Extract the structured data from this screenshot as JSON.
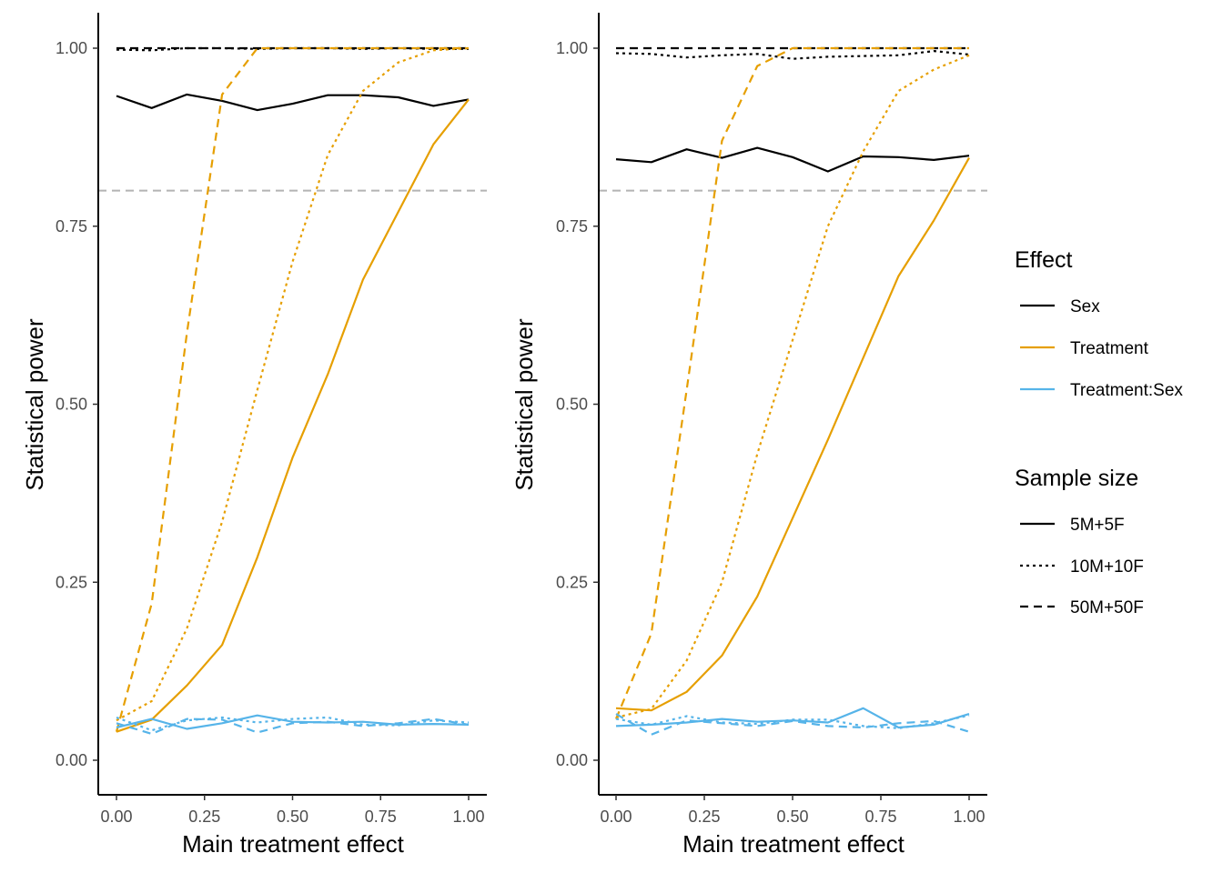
{
  "chart_data": [
    {
      "type": "line",
      "xlabel": "Main treatment effect",
      "ylabel": "Statistical power",
      "xlim": [
        -0.05,
        1.05
      ],
      "ylim": [
        -0.05,
        1.05
      ],
      "x_ticks": [
        "0.00",
        "0.25",
        "0.50",
        "0.75",
        "1.00"
      ],
      "y_ticks": [
        "0.00",
        "0.25",
        "0.50",
        "0.75",
        "1.00"
      ],
      "grid": false,
      "reference_line_y": 0.8,
      "x": [
        0.0,
        0.1,
        0.2,
        0.3,
        0.4,
        0.5,
        0.6,
        0.7,
        0.8,
        0.9,
        1.0
      ],
      "series": [
        {
          "effect": "Sex",
          "sample_size": "5M+5F",
          "values": [
            0.933,
            0.916,
            0.935,
            0.926,
            0.913,
            0.922,
            0.934,
            0.934,
            0.931,
            0.919,
            0.928
          ]
        },
        {
          "effect": "Sex",
          "sample_size": "10M+10F",
          "values": [
            0.998,
            0.997,
            1.0,
            1.0,
            0.999,
            1.0,
            1.0,
            0.999,
            1.0,
            0.999,
            0.999
          ]
        },
        {
          "effect": "Sex",
          "sample_size": "50M+50F",
          "values": [
            1.0,
            1.0,
            1.0,
            1.0,
            1.0,
            1.0,
            1.0,
            1.0,
            1.0,
            1.0,
            1.0
          ]
        },
        {
          "effect": "Treatment",
          "sample_size": "5M+5F",
          "values": [
            0.04,
            0.057,
            0.105,
            0.162,
            0.285,
            0.425,
            0.542,
            0.675,
            0.77,
            0.865,
            0.928
          ]
        },
        {
          "effect": "Treatment",
          "sample_size": "10M+10F",
          "values": [
            0.056,
            0.083,
            0.185,
            0.335,
            0.52,
            0.7,
            0.85,
            0.94,
            0.98,
            0.997,
            1.0
          ]
        },
        {
          "effect": "Treatment",
          "sample_size": "50M+50F",
          "values": [
            0.04,
            0.22,
            0.6,
            0.935,
            1.0,
            1.0,
            1.0,
            1.0,
            1.0,
            1.0,
            1.0
          ]
        },
        {
          "effect": "Treatment:Sex",
          "sample_size": "5M+5F",
          "values": [
            0.046,
            0.058,
            0.044,
            0.052,
            0.063,
            0.054,
            0.053,
            0.054,
            0.05,
            0.051,
            0.05
          ]
        },
        {
          "effect": "Treatment:Sex",
          "sample_size": "10M+10F",
          "values": [
            0.06,
            0.042,
            0.056,
            0.06,
            0.053,
            0.058,
            0.06,
            0.05,
            0.049,
            0.056,
            0.053
          ]
        },
        {
          "effect": "Treatment:Sex",
          "sample_size": "50M+50F",
          "values": [
            0.052,
            0.037,
            0.058,
            0.057,
            0.039,
            0.052,
            0.054,
            0.048,
            0.052,
            0.058,
            0.05
          ]
        }
      ]
    },
    {
      "type": "line",
      "xlabel": "Main treatment effect",
      "ylabel": "Statistical power",
      "xlim": [
        -0.05,
        1.05
      ],
      "ylim": [
        -0.05,
        1.05
      ],
      "x_ticks": [
        "0.00",
        "0.25",
        "0.50",
        "0.75",
        "1.00"
      ],
      "y_ticks": [
        "0.00",
        "0.25",
        "0.50",
        "0.75",
        "1.00"
      ],
      "grid": false,
      "reference_line_y": 0.8,
      "x": [
        0.0,
        0.1,
        0.2,
        0.3,
        0.4,
        0.5,
        0.6,
        0.7,
        0.8,
        0.9,
        1.0
      ],
      "series": [
        {
          "effect": "Sex",
          "sample_size": "5M+5F",
          "values": [
            0.844,
            0.84,
            0.858,
            0.846,
            0.86,
            0.847,
            0.827,
            0.848,
            0.847,
            0.843,
            0.849
          ]
        },
        {
          "effect": "Sex",
          "sample_size": "10M+10F",
          "values": [
            0.993,
            0.992,
            0.987,
            0.99,
            0.992,
            0.985,
            0.988,
            0.989,
            0.99,
            0.996,
            0.991
          ]
        },
        {
          "effect": "Sex",
          "sample_size": "50M+50F",
          "values": [
            1.0,
            1.0,
            1.0,
            1.0,
            1.0,
            1.0,
            1.0,
            1.0,
            1.0,
            1.0,
            1.0
          ]
        },
        {
          "effect": "Treatment",
          "sample_size": "5M+5F",
          "values": [
            0.073,
            0.07,
            0.096,
            0.147,
            0.23,
            0.34,
            0.45,
            0.565,
            0.68,
            0.758,
            0.846
          ]
        },
        {
          "effect": "Treatment",
          "sample_size": "10M+10F",
          "values": [
            0.06,
            0.072,
            0.14,
            0.25,
            0.43,
            0.59,
            0.75,
            0.855,
            0.94,
            0.97,
            0.99
          ]
        },
        {
          "effect": "Treatment",
          "sample_size": "50M+50F",
          "values": [
            0.058,
            0.178,
            0.52,
            0.87,
            0.975,
            1.0,
            1.0,
            1.0,
            1.0,
            1.0,
            1.0
          ]
        },
        {
          "effect": "Treatment:Sex",
          "sample_size": "5M+5F",
          "values": [
            0.048,
            0.05,
            0.053,
            0.058,
            0.054,
            0.056,
            0.053,
            0.073,
            0.046,
            0.05,
            0.065
          ]
        },
        {
          "effect": "Treatment:Sex",
          "sample_size": "10M+10F",
          "values": [
            0.058,
            0.05,
            0.062,
            0.053,
            0.051,
            0.057,
            0.057,
            0.048,
            0.045,
            0.052,
            0.063
          ]
        },
        {
          "effect": "Treatment:Sex",
          "sample_size": "50M+50F",
          "values": [
            0.065,
            0.036,
            0.056,
            0.052,
            0.048,
            0.055,
            0.048,
            0.046,
            0.052,
            0.055,
            0.04
          ]
        }
      ]
    }
  ],
  "legend": {
    "effect_title": "Effect",
    "effects": [
      {
        "label": "Sex",
        "color": "#000000"
      },
      {
        "label": "Treatment",
        "color": "#E69F00"
      },
      {
        "label": "Treatment:Sex",
        "color": "#56B4E9"
      }
    ],
    "sample_title": "Sample size",
    "sample_sizes": [
      {
        "label": "5M+5F",
        "dash": "solid"
      },
      {
        "label": "10M+10F",
        "dash": "dotted"
      },
      {
        "label": "50M+50F",
        "dash": "dashed"
      }
    ]
  },
  "colors": {
    "reference_line": "#B3B3B3",
    "axis": "#000000",
    "tick_label": "#4d4d4d"
  }
}
